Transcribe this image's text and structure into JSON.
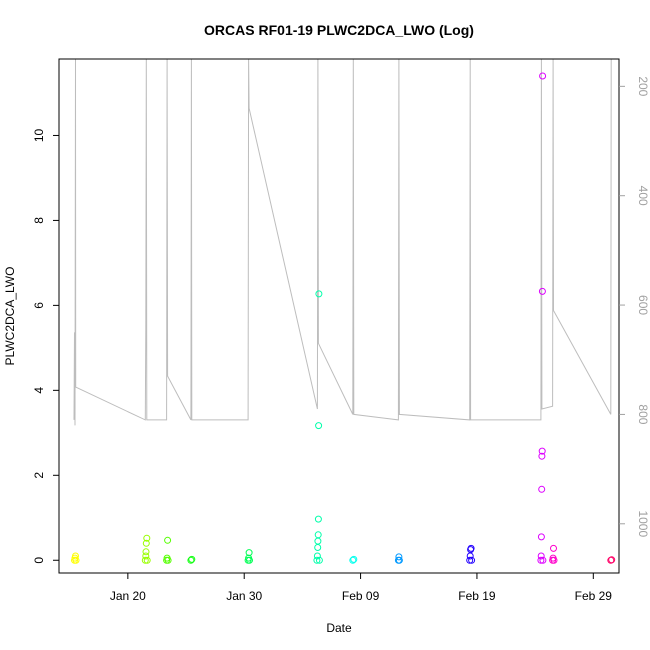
{
  "chart_data": {
    "type": "scatter",
    "title": "ORCAS RF01-19 PLWC2DCA_LWO (Log)",
    "xlabel": "Date",
    "ylabel": "PLWC2DCA_LWO",
    "xlim": [
      "2016-01-14T02:00",
      "2016-03-02T05:00"
    ],
    "ylim": [
      -0.3,
      11.8
    ],
    "x_ticks": [
      {
        "x": "2016-01-20",
        "label": "Jan 20"
      },
      {
        "x": "2016-01-30",
        "label": "Jan 30"
      },
      {
        "x": "2016-02-09",
        "label": "Feb 09"
      },
      {
        "x": "2016-02-19",
        "label": "Feb 19"
      },
      {
        "x": "2016-02-29",
        "label": "Feb 29"
      }
    ],
    "y_ticks": [
      0,
      2,
      4,
      6,
      8,
      10
    ],
    "y2_ticks": [
      200,
      400,
      600,
      800,
      1000
    ],
    "y2lim": [
      1090,
      150
    ],
    "grid": false,
    "legend": "none",
    "altitude_color": "#bdbdbd",
    "altitude_trace": [
      [
        "2016-01-15T09:00",
        810
      ],
      [
        "2016-01-15T10:00",
        650
      ],
      [
        "2016-01-15T11:00",
        820
      ],
      [
        "2016-01-15T12:00",
        150
      ],
      [
        "2016-01-15T12:30",
        750
      ],
      [
        "2016-01-21T12:00",
        810
      ],
      [
        "2016-01-21T13:00",
        640
      ],
      [
        "2016-01-21T14:00",
        150
      ],
      [
        "2016-01-21T15:00",
        810
      ],
      [
        "2016-01-23T08:00",
        810
      ],
      [
        "2016-01-23T09:00",
        150
      ],
      [
        "2016-01-23T10:00",
        730
      ],
      [
        "2016-01-25T10:00",
        810
      ],
      [
        "2016-01-25T11:00",
        150
      ],
      [
        "2016-01-25T12:00",
        810
      ],
      [
        "2016-01-30T08:00",
        810
      ],
      [
        "2016-01-30T09:00",
        150
      ],
      [
        "2016-01-30T10:00",
        240
      ],
      [
        "2016-02-05T07:00",
        790
      ],
      [
        "2016-02-05T08:00",
        150
      ],
      [
        "2016-02-05T09:00",
        670
      ],
      [
        "2016-02-08T08:00",
        800
      ],
      [
        "2016-02-08T09:00",
        150
      ],
      [
        "2016-02-08T10:00",
        800
      ],
      [
        "2016-02-12T06:00",
        810
      ],
      [
        "2016-02-12T07:00",
        150
      ],
      [
        "2016-02-12T08:00",
        800
      ],
      [
        "2016-02-18T09:00",
        810
      ],
      [
        "2016-02-18T10:00",
        150
      ],
      [
        "2016-02-18T11:00",
        810
      ],
      [
        "2016-02-24T12:00",
        810
      ],
      [
        "2016-02-24T13:00",
        150
      ],
      [
        "2016-02-24T14:00",
        790
      ],
      [
        "2016-02-25T12:00",
        785
      ],
      [
        "2016-02-25T13:00",
        150
      ],
      [
        "2016-02-25T14:00",
        610
      ],
      [
        "2016-03-01T12:00",
        800
      ],
      [
        "2016-03-01T13:00",
        150
      ]
    ],
    "series": [
      {
        "color": "#ffff00",
        "points": [
          [
            "2016-01-15T10:00",
            0.0
          ],
          [
            "2016-01-15T11:00",
            0.05
          ],
          [
            "2016-01-15T12:00",
            0.1
          ],
          [
            "2016-01-15T13:00",
            0.0
          ]
        ]
      },
      {
        "color": "#99ff00",
        "points": [
          [
            "2016-01-21T12:00",
            0.0
          ],
          [
            "2016-01-21T13:00",
            0.1
          ],
          [
            "2016-01-21T13:30",
            0.2
          ],
          [
            "2016-01-21T14:00",
            0.4
          ],
          [
            "2016-01-21T15:00",
            0.52
          ],
          [
            "2016-01-21T16:00",
            0.0
          ]
        ]
      },
      {
        "color": "#55ff00",
        "points": [
          [
            "2016-01-23T08:00",
            0.0
          ],
          [
            "2016-01-23T09:00",
            0.05
          ],
          [
            "2016-01-23T10:00",
            0.47
          ],
          [
            "2016-01-23T11:00",
            0.0
          ]
        ]
      },
      {
        "color": "#11ff11",
        "points": [
          [
            "2016-01-25T10:00",
            0.0
          ],
          [
            "2016-01-25T12:00",
            0.02
          ]
        ]
      },
      {
        "color": "#00ff55",
        "points": [
          [
            "2016-01-30T08:00",
            0.0
          ],
          [
            "2016-01-30T09:00",
            0.05
          ],
          [
            "2016-01-30T10:00",
            0.18
          ],
          [
            "2016-01-30T11:00",
            0.0
          ]
        ]
      },
      {
        "color": "#00ffaa",
        "points": [
          [
            "2016-02-05T06:00",
            0.0
          ],
          [
            "2016-02-05T07:00",
            0.1
          ],
          [
            "2016-02-05T07:30",
            0.3
          ],
          [
            "2016-02-05T08:00",
            0.45
          ],
          [
            "2016-02-05T08:30",
            0.6
          ],
          [
            "2016-02-05T09:00",
            0.97
          ],
          [
            "2016-02-05T09:30",
            3.17
          ],
          [
            "2016-02-05T10:00",
            6.27
          ],
          [
            "2016-02-05T11:00",
            0.0
          ]
        ]
      },
      {
        "color": "#00ffee",
        "points": [
          [
            "2016-02-08T08:00",
            0.0
          ],
          [
            "2016-02-08T10:00",
            0.02
          ]
        ]
      },
      {
        "color": "#0099ff",
        "points": [
          [
            "2016-02-12T06:00",
            0.0
          ],
          [
            "2016-02-12T07:00",
            0.08
          ],
          [
            "2016-02-12T08:00",
            0.0
          ]
        ]
      },
      {
        "color": "#2200ff",
        "points": [
          [
            "2016-02-18T09:00",
            0.0
          ],
          [
            "2016-02-18T10:00",
            0.1
          ],
          [
            "2016-02-18T11:00",
            0.25
          ],
          [
            "2016-02-18T12:00",
            0.28
          ],
          [
            "2016-02-18T13:00",
            0.0
          ]
        ]
      },
      {
        "color": "#dd00ff",
        "points": [
          [
            "2016-02-24T12:00",
            0.0
          ],
          [
            "2016-02-24T12:30",
            0.1
          ],
          [
            "2016-02-24T13:00",
            0.55
          ],
          [
            "2016-02-24T13:30",
            1.67
          ],
          [
            "2016-02-24T14:00",
            2.45
          ],
          [
            "2016-02-24T14:30",
            2.57
          ],
          [
            "2016-02-24T15:00",
            6.33
          ],
          [
            "2016-02-24T15:30",
            11.4
          ],
          [
            "2016-02-24T16:00",
            0.0
          ]
        ]
      },
      {
        "color": "#ff00cc",
        "points": [
          [
            "2016-02-25T12:00",
            0.0
          ],
          [
            "2016-02-25T13:00",
            0.05
          ],
          [
            "2016-02-25T14:00",
            0.28
          ],
          [
            "2016-02-25T15:00",
            0.0
          ]
        ]
      },
      {
        "color": "#ff0066",
        "points": [
          [
            "2016-03-01T12:00",
            0.0
          ],
          [
            "2016-03-01T14:00",
            0.01
          ]
        ]
      }
    ]
  }
}
